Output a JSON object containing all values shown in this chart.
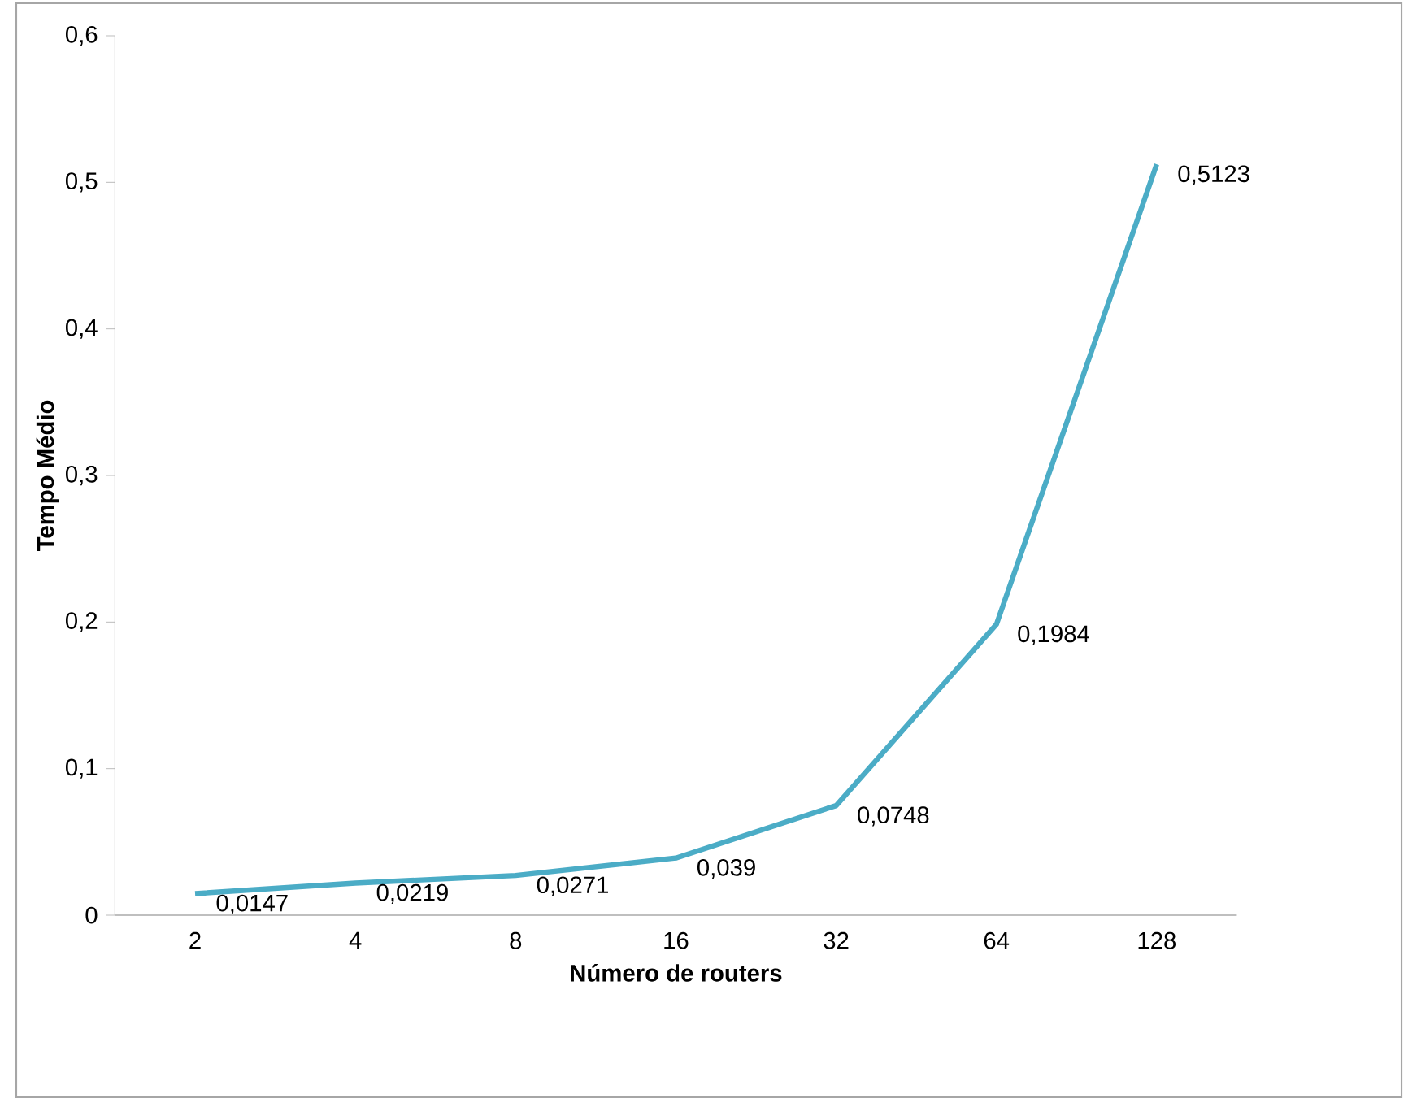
{
  "chart_data": {
    "type": "line",
    "xlabel": "Número de routers",
    "ylabel": "Tempo Médio",
    "categories": [
      "2",
      "4",
      "8",
      "16",
      "32",
      "64",
      "128"
    ],
    "series": [
      {
        "color": "#4bacc6",
        "values": [
          0.0147,
          0.0219,
          0.0271,
          0.039,
          0.0748,
          0.1984,
          0.5123
        ],
        "value_labels": [
          "0,0147",
          "0,0219",
          "0,0271",
          "0,039",
          "0,0748",
          "0,1984",
          "0,5123"
        ]
      }
    ],
    "ylim": [
      0,
      0.6
    ],
    "yticks": [
      {
        "value": 0,
        "label": "0"
      },
      {
        "value": 0.1,
        "label": "0,1"
      },
      {
        "value": 0.2,
        "label": "0,2"
      },
      {
        "value": 0.3,
        "label": "0,3"
      },
      {
        "value": 0.4,
        "label": "0,4"
      },
      {
        "value": 0.5,
        "label": "0,5"
      },
      {
        "value": 0.6,
        "label": "0,6"
      }
    ],
    "grid": false,
    "marker": "none",
    "line_style": "solid"
  }
}
